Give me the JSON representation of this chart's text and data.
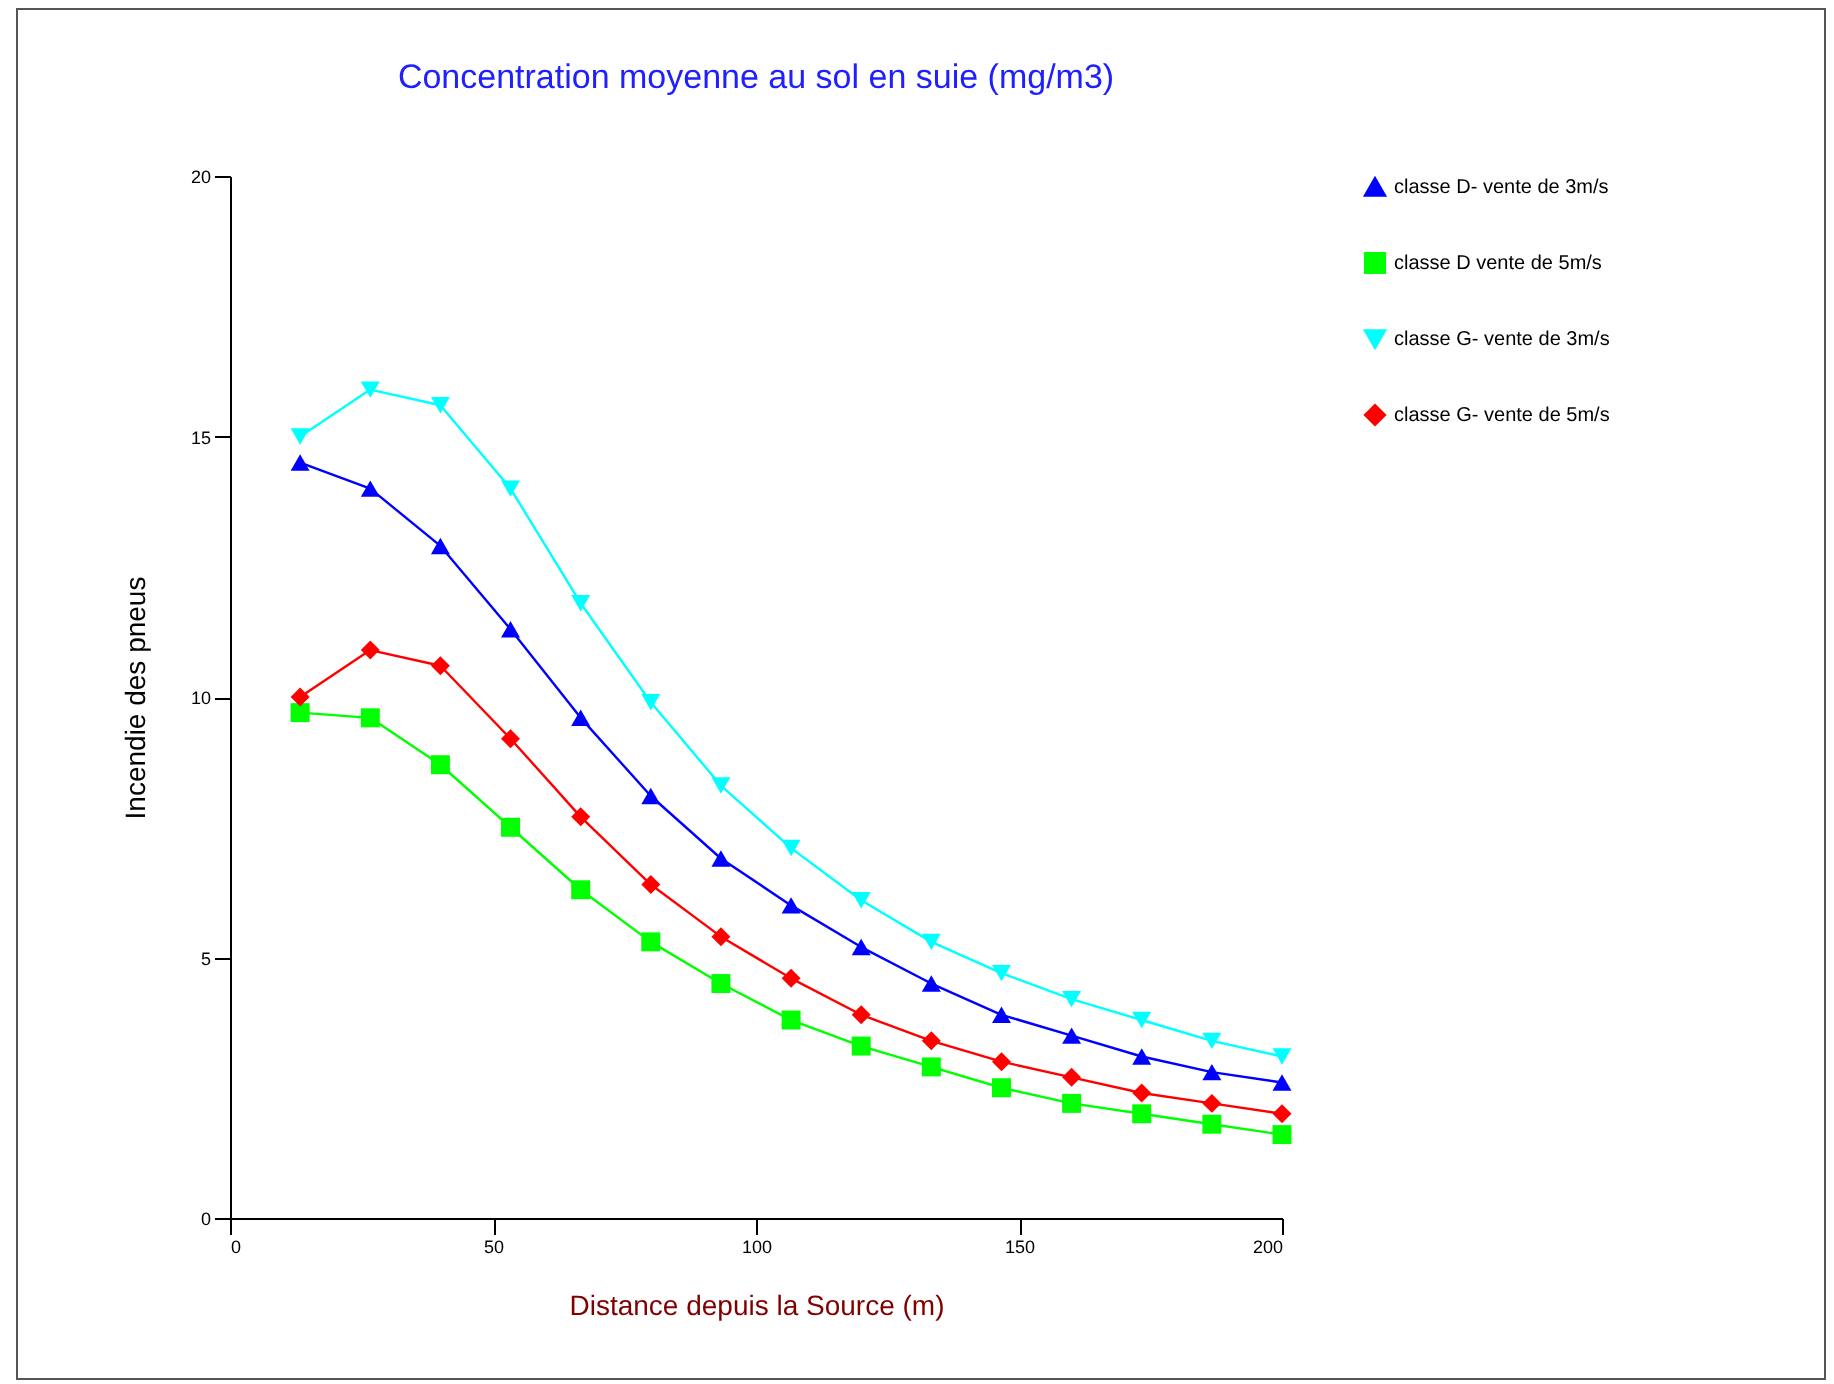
{
  "chart_data": {
    "type": "line",
    "title": "Concentration moyenne au sol en suie (mg/m3)",
    "xlabel": "Distance depuis la Source (m)",
    "ylabel": "Incendie des pneus",
    "x": [
      13.33,
      26.67,
      40,
      53.33,
      66.67,
      80,
      93.33,
      106.67,
      120,
      133.33,
      146.67,
      160,
      173.33,
      186.67,
      200
    ],
    "series": [
      {
        "name": "classe D- vente de 3m/s",
        "color": "#0000ff",
        "marker": "triangle",
        "values": [
          14.5,
          14.0,
          12.9,
          11.3,
          9.6,
          8.1,
          6.9,
          6.0,
          5.2,
          4.5,
          3.9,
          3.5,
          3.1,
          2.8,
          2.6
        ]
      },
      {
        "name": "classe D vente de 5m/s",
        "color": "#00ff00",
        "marker": "square",
        "values": [
          9.7,
          9.6,
          8.7,
          7.5,
          6.3,
          5.3,
          4.5,
          3.8,
          3.3,
          2.9,
          2.5,
          2.2,
          2.0,
          1.8,
          1.6
        ]
      },
      {
        "name": "classe G- vente de 3m/s",
        "color": "#00ffff",
        "marker": "triangle-down",
        "values": [
          15.0,
          15.9,
          15.6,
          14.0,
          11.8,
          9.9,
          8.3,
          7.1,
          6.1,
          5.3,
          4.7,
          4.2,
          3.8,
          3.4,
          3.1
        ]
      },
      {
        "name": "classe G- vente de 5m/s",
        "color": "#ff0000",
        "marker": "diamond",
        "values": [
          10.0,
          10.9,
          10.6,
          9.2,
          7.7,
          6.4,
          5.4,
          4.6,
          3.9,
          3.4,
          3.0,
          2.7,
          2.4,
          2.2,
          2.0
        ]
      }
    ],
    "xlim": [
      0,
      200
    ],
    "xticks": [
      0,
      50,
      100,
      150,
      200
    ],
    "ylim": [
      0,
      20
    ],
    "yticks": [
      0,
      5,
      10,
      15,
      20
    ],
    "grid": false,
    "legend": "right"
  }
}
